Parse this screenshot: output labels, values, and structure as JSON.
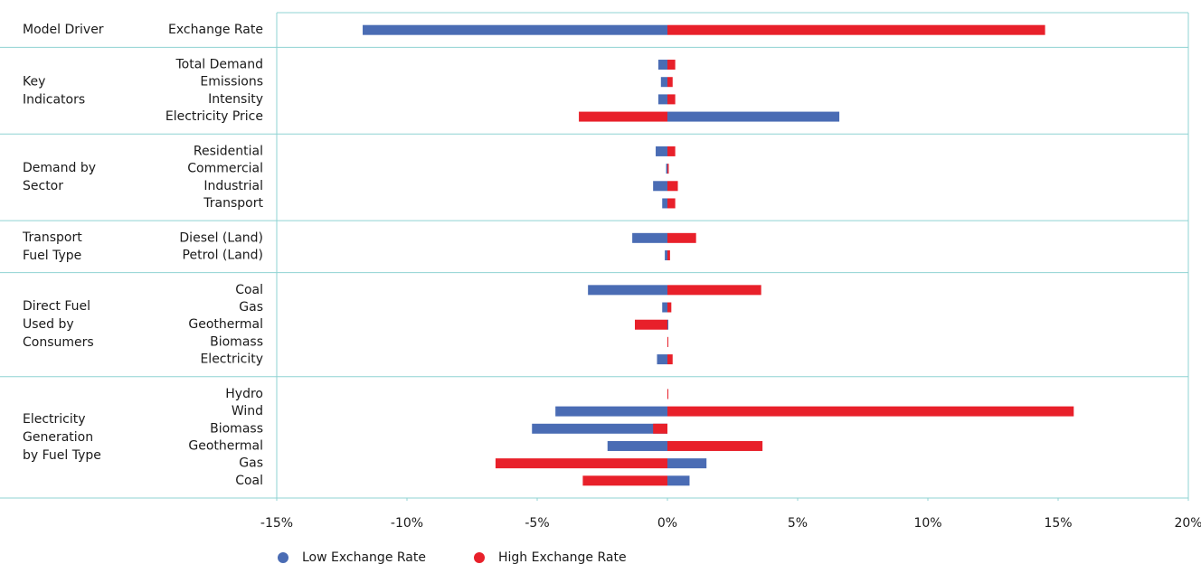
{
  "chart_data": {
    "type": "tornado",
    "groups": [
      {
        "label": [
          "Model Driver"
        ],
        "categories": [
          "Exchange Rate"
        ]
      },
      {
        "label": [
          "Key",
          "Indicators"
        ],
        "categories": [
          "Total Demand",
          "Emissions",
          "Intensity",
          "Electricity Price"
        ]
      },
      {
        "label": [
          "Demand by",
          "Sector"
        ],
        "categories": [
          "Residential",
          "Commercial",
          "Industrial",
          "Transport"
        ]
      },
      {
        "label": [
          "Transport",
          "Fuel Type"
        ],
        "categories": [
          "Diesel (Land)",
          "Petrol (Land)"
        ]
      },
      {
        "label": [
          "Direct Fuel",
          "Used by",
          "Consumers"
        ],
        "categories": [
          "Coal",
          "Gas",
          "Geothermal",
          "Biomass",
          "Electricity"
        ]
      },
      {
        "label": [
          "Electricity",
          "Generation",
          "by Fuel Type"
        ],
        "categories": [
          "Hydro",
          "Wind",
          "Biomass",
          "Geothermal",
          "Gas",
          "Coal"
        ]
      }
    ],
    "series": [
      {
        "name": "Low Exchange Rate",
        "color": "#4a6cb4",
        "values": [
          -11.7,
          -0.35,
          -0.25,
          -0.35,
          6.6,
          -0.45,
          -0.05,
          -0.55,
          -0.2,
          -1.35,
          -0.1,
          -3.05,
          -0.2,
          0,
          0,
          -0.4,
          0,
          -4.3,
          -5.2,
          -2.3,
          1.5,
          0.85
        ]
      },
      {
        "name": "High Exchange Rate",
        "color": "#e8202a",
        "values": [
          14.5,
          0.3,
          0.2,
          0.3,
          -3.4,
          0.3,
          0.05,
          0.4,
          0.3,
          1.1,
          0.1,
          3.6,
          0.15,
          -1.25,
          0,
          0.2,
          0,
          15.6,
          -0.55,
          3.65,
          -6.6,
          -3.25
        ]
      }
    ],
    "xlim": [
      -15,
      20
    ],
    "xticks": [
      {
        "value": -15,
        "label": "-15%"
      },
      {
        "value": -10,
        "label": "-10%"
      },
      {
        "value": -5,
        "label": "-5%"
      },
      {
        "value": 0,
        "label": "0%"
      },
      {
        "value": 5,
        "label": "5%"
      },
      {
        "value": 10,
        "label": "10%"
      },
      {
        "value": 15,
        "label": "15%"
      },
      {
        "value": 20,
        "label": "20%"
      }
    ],
    "legend": "bottom"
  }
}
